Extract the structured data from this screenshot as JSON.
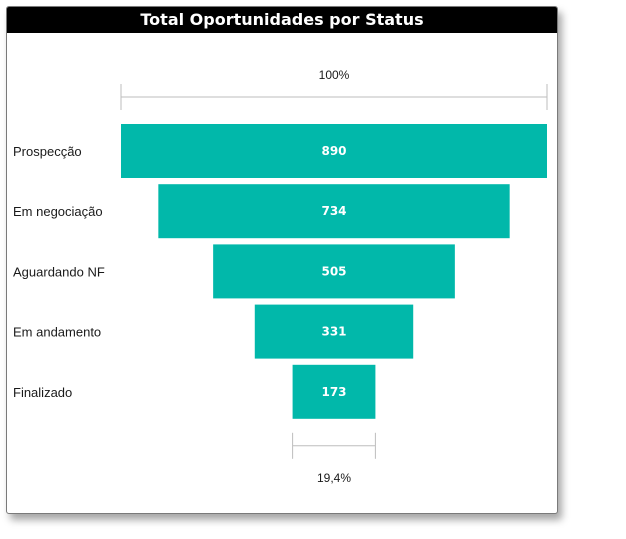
{
  "chart_data": {
    "type": "funnel",
    "title": "Total Oportunidades por Status",
    "categories": [
      "Prospecção",
      "Em negociação",
      "Aguardando NF",
      "Em andamento",
      "Finalizado"
    ],
    "values": [
      890,
      734,
      505,
      331,
      173
    ],
    "value_labels": [
      "890",
      "734",
      "505",
      "331",
      "173"
    ],
    "top_percent_label": "100%",
    "bottom_percent_label": "19,4%",
    "bar_color": "#01B8AA",
    "legend": "none",
    "grid": false
  }
}
